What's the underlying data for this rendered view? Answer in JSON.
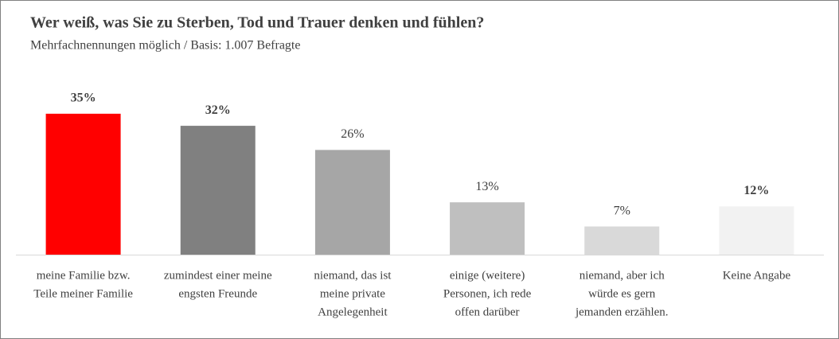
{
  "chart_data": {
    "type": "bar",
    "title": "Wer weiß, was Sie zu Sterben, Tod und Trauer denken und fühlen?",
    "subtitle": "Mehrfachnennungen möglich / Basis: 1.007 Befragte",
    "categories": [
      [
        "meine Familie bzw.",
        "Teile meiner Familie"
      ],
      [
        "zumindest einer meine",
        "engsten Freunde"
      ],
      [
        "niemand, das ist",
        "meine private",
        "Angelegenheit"
      ],
      [
        "einige (weitere)",
        "Personen, ich rede",
        "offen darüber"
      ],
      [
        "niemand, aber ich",
        "würde es gern",
        "jemanden erzählen."
      ],
      [
        "Keine Angabe"
      ]
    ],
    "values": [
      35,
      32,
      26,
      13,
      7,
      12
    ],
    "value_labels": [
      "35%",
      "32%",
      "26%",
      "13%",
      "7%",
      "12%"
    ],
    "value_label_bold": [
      true,
      true,
      false,
      false,
      false,
      true
    ],
    "colors": [
      "#ff0000",
      "#808080",
      "#a6a6a6",
      "#bfbfbf",
      "#d9d9d9",
      "#f2f2f2"
    ]
  }
}
